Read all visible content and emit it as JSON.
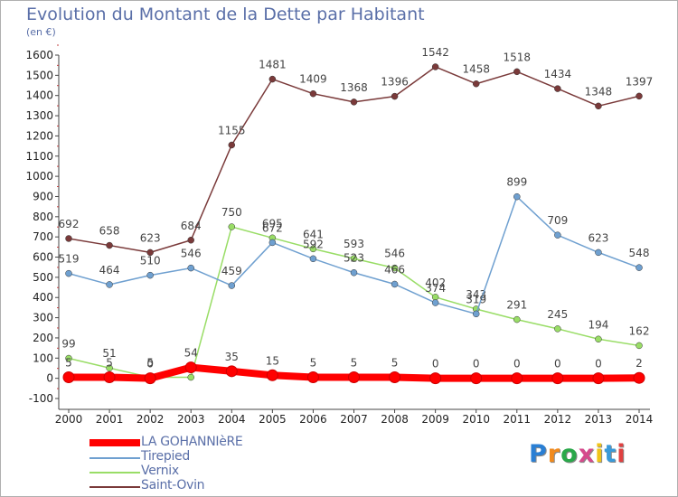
{
  "chart_title": "Evolution du Montant de la Dette par Habitant",
  "chart_subtitle": "(en €)",
  "logo_text": "Proxiti",
  "chart_data": {
    "type": "line",
    "title": "Evolution du Montant de la Dette par Habitant",
    "ylabel": "(en €)",
    "xlabel": "",
    "x": [
      "2000",
      "2001",
      "2002",
      "2003",
      "2004",
      "2005",
      "2006",
      "2007",
      "2008",
      "2009",
      "2010",
      "2011",
      "2012",
      "2013",
      "2014"
    ],
    "ylim": [
      -100,
      1600
    ],
    "yticks": [
      "-100",
      "0",
      "100",
      "200",
      "300",
      "400",
      "500",
      "600",
      "700",
      "800",
      "900",
      "1000",
      "1100",
      "1200",
      "1300",
      "1400",
      "1500",
      "1600"
    ],
    "grid": false,
    "legend_position": "bottom",
    "series": [
      {
        "name": "LA GOHANNIèRE",
        "color": "#ff0000",
        "line_width": 8,
        "values": [
          5,
          5,
          0,
          54,
          35,
          15,
          5,
          5,
          5,
          0,
          0,
          0,
          0,
          0,
          2
        ],
        "labels": [
          "5",
          "5",
          "0",
          "54",
          "35",
          "15",
          "5",
          "5",
          "5",
          "0",
          "0",
          "0",
          "0",
          "0",
          "2"
        ]
      },
      {
        "name": "Tirepied",
        "color": "#6fa0d0",
        "line_width": 1.5,
        "values": [
          519,
          464,
          510,
          546,
          459,
          672,
          592,
          523,
          466,
          374,
          319,
          899,
          709,
          623,
          548
        ],
        "labels": [
          "519",
          "464",
          "510",
          "546",
          "459",
          "672",
          "592",
          "523",
          "466",
          "374",
          "319",
          "899",
          "709",
          "623",
          "548"
        ]
      },
      {
        "name": "Vernix",
        "color": "#99dd66",
        "line_width": 1.5,
        "values": [
          99,
          51,
          5,
          5,
          750,
          695,
          641,
          593,
          546,
          402,
          343,
          291,
          245,
          194,
          162
        ],
        "labels": [
          "99",
          "51",
          "5",
          "",
          "750",
          "695",
          "641",
          "593",
          "546",
          "402",
          "343",
          "291",
          "245",
          "194",
          "162"
        ]
      },
      {
        "name": "Saint-Ovin",
        "color": "#7a3a3a",
        "line_width": 1.5,
        "values": [
          692,
          658,
          623,
          684,
          1155,
          1481,
          1409,
          1368,
          1396,
          1542,
          1458,
          1518,
          1434,
          1348,
          1397
        ],
        "labels": [
          "692",
          "658",
          "623",
          "684",
          "1155",
          "1481",
          "1409",
          "1368",
          "1396",
          "1542",
          "1458",
          "1518",
          "1434",
          "1348",
          "1397"
        ]
      }
    ]
  }
}
